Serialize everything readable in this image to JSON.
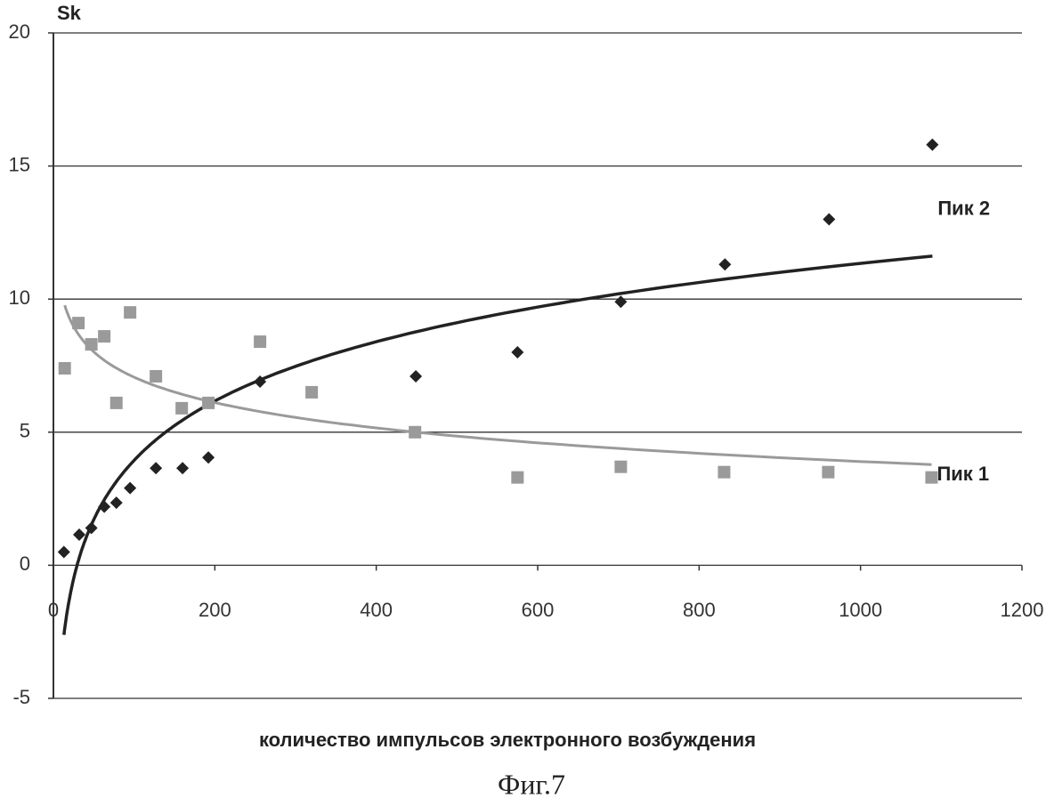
{
  "chart_data": {
    "type": "scatter",
    "y_label": "Sk",
    "x_label": "количество импульсов электронного возбуждения",
    "caption": "Фиг.7",
    "xlim": [
      0,
      1200
    ],
    "xticks": [
      0,
      200,
      400,
      600,
      800,
      1000,
      1200
    ],
    "ylim": [
      -5,
      20
    ],
    "yticks": [
      -5,
      0,
      5,
      10,
      15,
      20
    ],
    "grid": true,
    "trendline": "logarithmic",
    "series": [
      {
        "name": "Пик 2",
        "color": "#222222",
        "marker": "diamond",
        "x": [
          13,
          32,
          47,
          63,
          78,
          95,
          127,
          160,
          192,
          256,
          449,
          575,
          703,
          832,
          961,
          1089
        ],
        "values": [
          0.5,
          1.15,
          1.4,
          2.2,
          2.35,
          2.9,
          3.65,
          3.65,
          4.05,
          6.9,
          7.1,
          8.0,
          9.9,
          11.3,
          13.0,
          15.8
        ]
      },
      {
        "name": "Пик 1",
        "color": "#9a9a9a",
        "marker": "square",
        "x": [
          14,
          31,
          47,
          63,
          78,
          95,
          127,
          159,
          192,
          256,
          320,
          448,
          575,
          703,
          831,
          960,
          1088
        ],
        "values": [
          7.4,
          9.1,
          8.3,
          8.6,
          6.1,
          9.5,
          7.1,
          5.9,
          6.1,
          8.4,
          6.5,
          5.0,
          3.3,
          3.7,
          3.5,
          3.5,
          3.3
        ]
      }
    ]
  }
}
